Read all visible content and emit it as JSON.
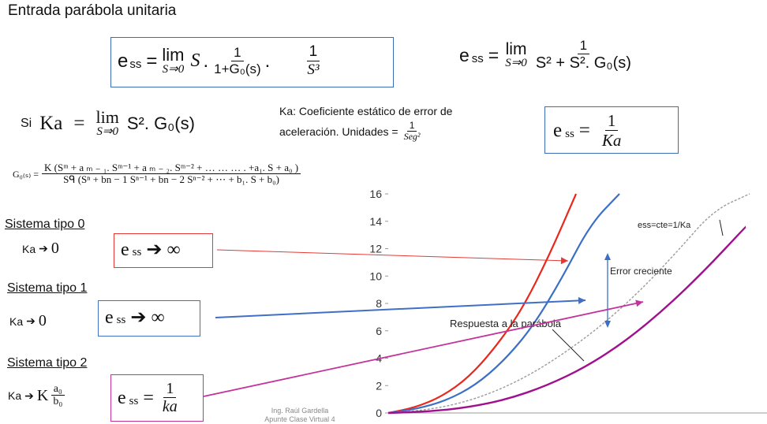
{
  "page": {
    "title": "Entrada parábola unitaria"
  },
  "eq1": {
    "lhs": "e",
    "sub": "ss",
    "eq": "=",
    "lim": "lim",
    "lim_sub": "S⇒0",
    "s": "S",
    "dot": ".",
    "f1_num": "1",
    "f1_den": "1+G₀(s)",
    "f2_num": "1",
    "f2_den": "S³"
  },
  "eq2": {
    "lhs": "e",
    "sub": "ss",
    "eq": "=",
    "lim": "lim",
    "lim_sub": "S⇒0",
    "f_num": "1",
    "f_den": "S² + S². G₀(s)"
  },
  "ka_def": {
    "si": "Si",
    "ka": "Ka",
    "eq": "=",
    "lim": "lim",
    "lim_sub": "S⇒0",
    "expr": "S². G₀(s)"
  },
  "ka_note": {
    "line1": "Ka: Coeficiente estático de error de",
    "line2": "aceleración.  Unidades =",
    "f_num": "1",
    "f_den": "Seg²"
  },
  "ess_ka": {
    "lhs": "e",
    "sub": "ss",
    "eq": "=",
    "f_num": "1",
    "f_den": "Ka"
  },
  "g0": {
    "lhs": "G₀₍ₛ₎ =",
    "num": "K (Sᵐ + a ₘ ₋ ₁. Sᵐ⁻¹ +  a ₘ ₋ ₂. Sᵐ⁻² +   … … … . +a₁. S + a₀ )",
    "den": "Sᑫ  (Sⁿ + bn − 1 Sⁿ⁻¹ + bn − 2 Sⁿ⁻² + ⋯         + b₁. S + b₀)"
  },
  "types": [
    {
      "label": "Sistema tipo 0",
      "ka": "Ka",
      "arrow": "➔",
      "ka_val": "0",
      "ess": "e",
      "sub": "ss",
      "res": "➔ ∞",
      "color": "#e53935"
    },
    {
      "label": "Sistema tipo 1",
      "ka": "Ka",
      "arrow": "➔",
      "ka_val": "0",
      "ess": "e",
      "sub": "ss",
      "res": "➔ ∞",
      "color": "#3f6fc7"
    },
    {
      "label": "Sistema tipo 2",
      "ka": "Ka",
      "arrow": "➔",
      "ka_val": "K",
      "frac_num": "a₀",
      "frac_den": "b₀",
      "ess": "e",
      "sub": "ss",
      "eq": "=",
      "f_num": "1",
      "f_den": "ka",
      "color": "#c2349b"
    }
  ],
  "credit": {
    "line1": "Ing. Raúl Gardella",
    "line2": "Apunte Clase Virtual 4"
  },
  "chart_data": {
    "type": "line",
    "ylim": [
      0,
      16
    ],
    "yticks": [
      "0",
      "2",
      "4",
      "6",
      "8",
      "10",
      "12",
      "14",
      "16"
    ],
    "annotations": {
      "ess_const": "ess=cte=1/Ka",
      "error_creciente": "Error creciente",
      "respuesta": "Respuesta a la parábola"
    },
    "series": [
      {
        "color": "#e8281c",
        "values": [
          0,
          0.4,
          1.2,
          2.6,
          4.8,
          7.6,
          11.5,
          16
        ]
      },
      {
        "color": "#3b6fc6",
        "values": [
          0,
          0.3,
          0.9,
          2.0,
          3.8,
          6.3,
          9.8,
          13.8,
          16
        ]
      },
      {
        "color": "#9b9b9b",
        "values": [
          0,
          0.2,
          0.7,
          1.6,
          2.9,
          4.6,
          6.6,
          9.0,
          11.8,
          14.8,
          16
        ]
      },
      {
        "color": "#a0108e",
        "values": [
          0,
          0.1,
          0.4,
          1.0,
          2.0,
          3.4,
          5.3,
          7.7,
          10.5,
          13.6
        ]
      }
    ]
  }
}
